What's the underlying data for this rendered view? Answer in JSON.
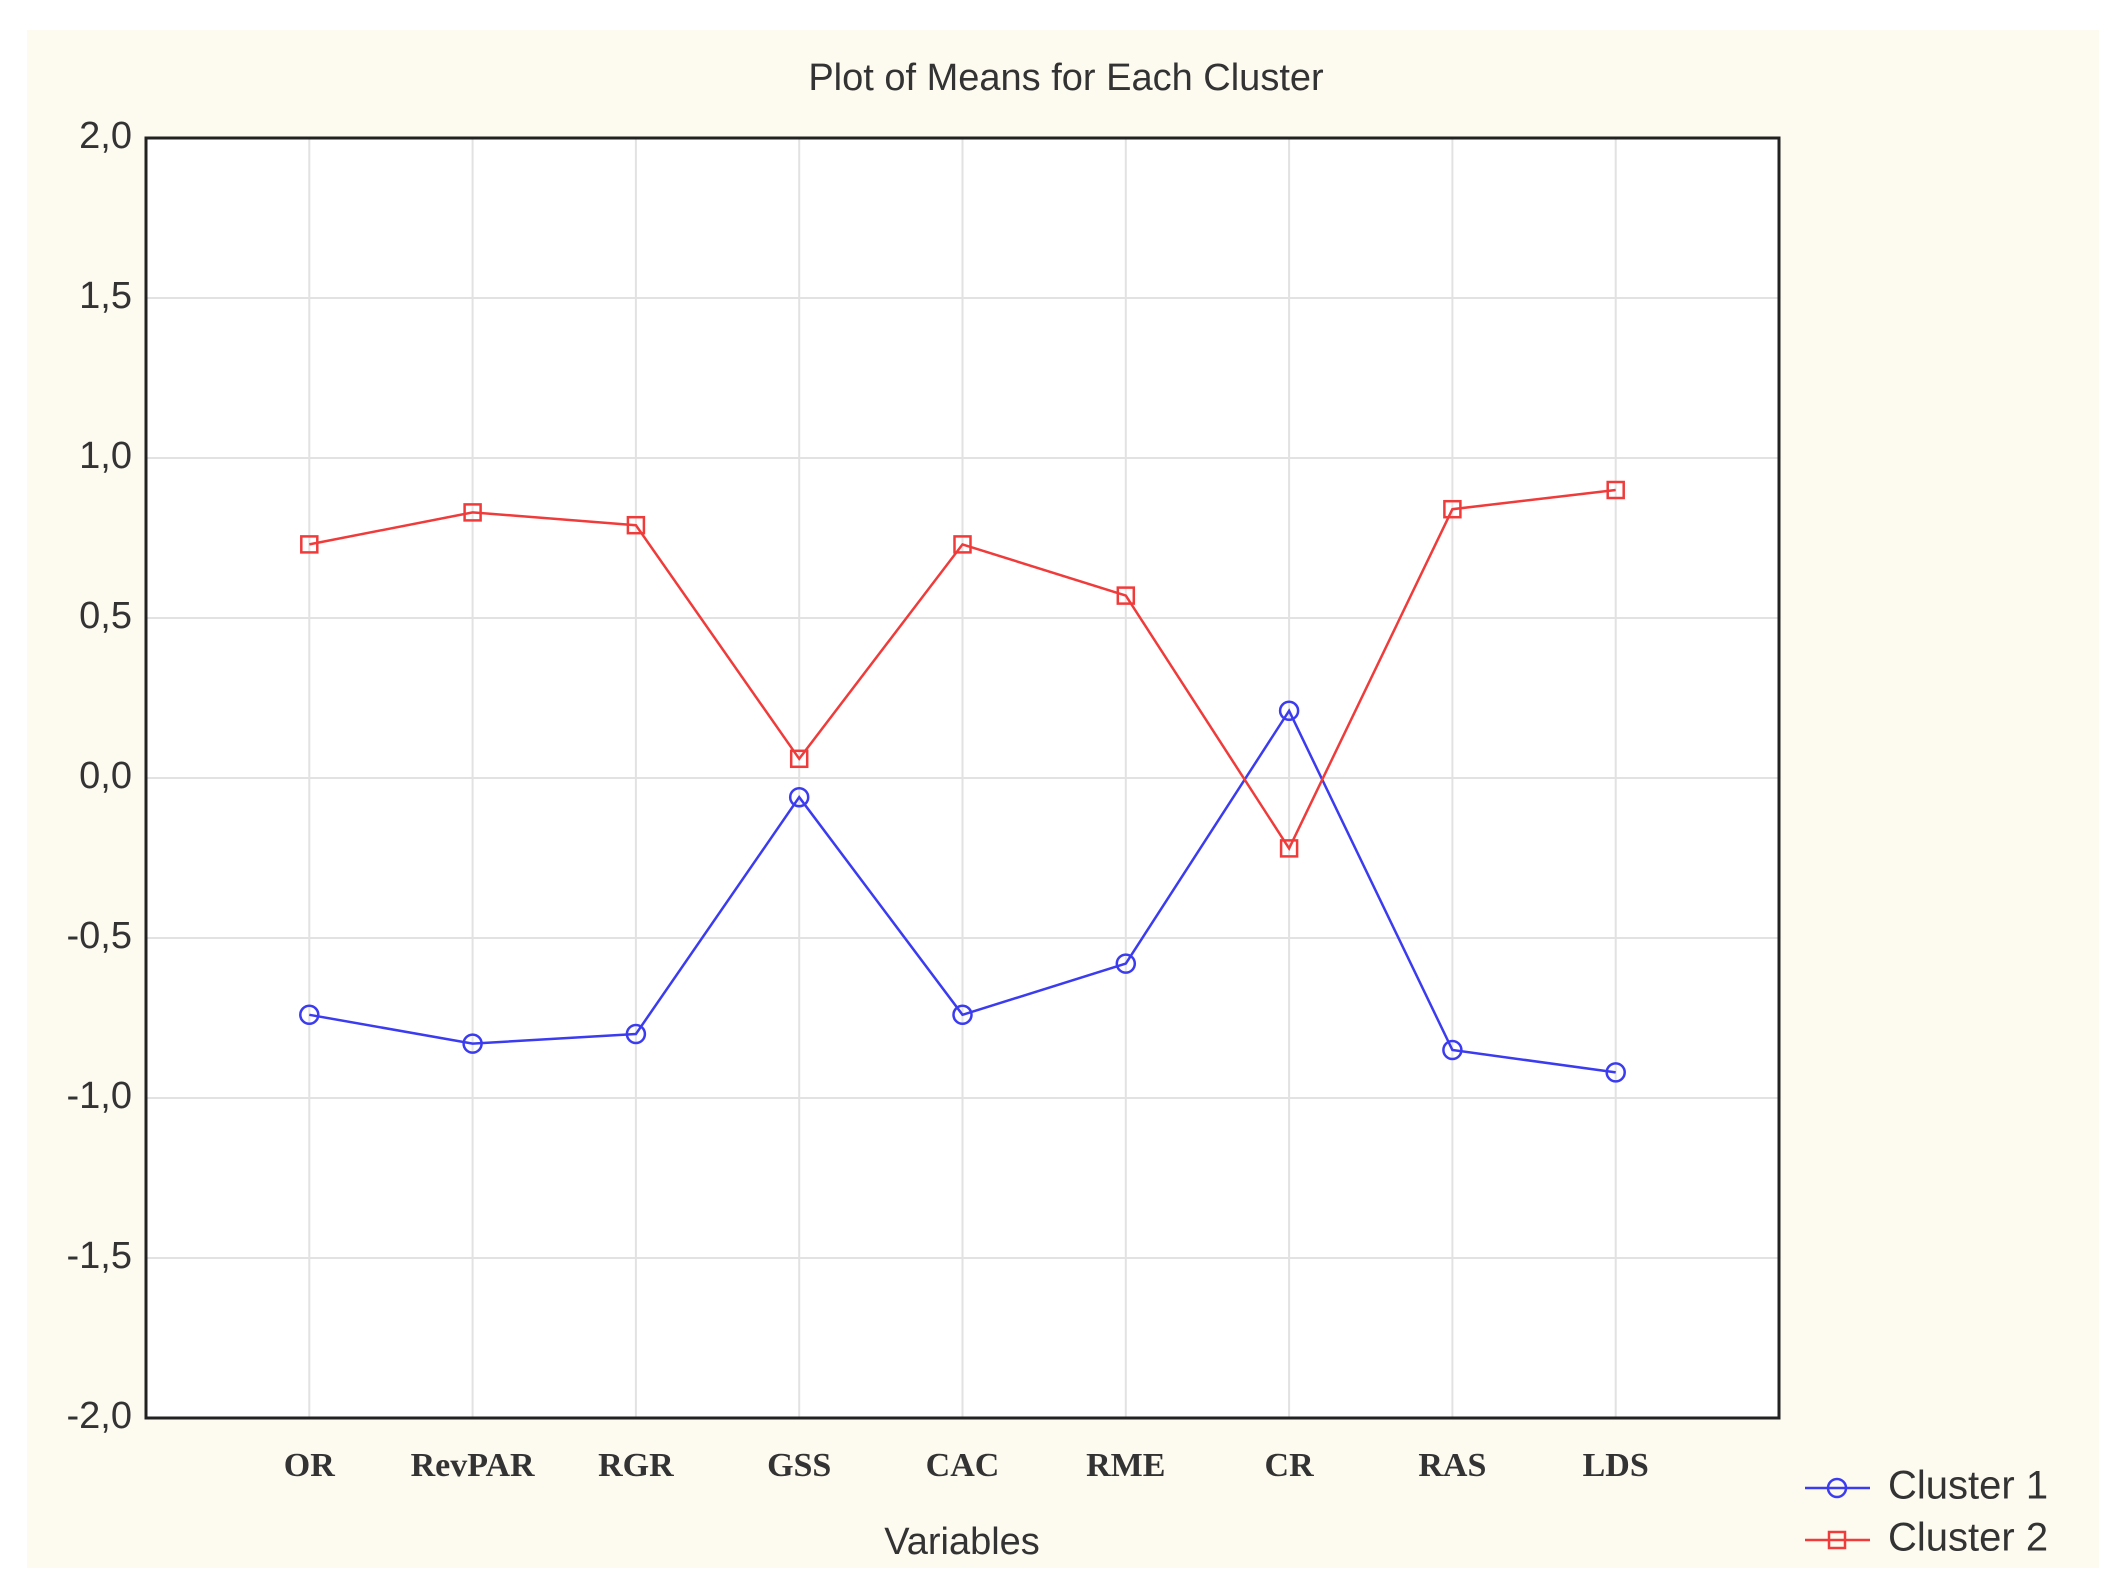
{
  "chart_data": {
    "type": "line",
    "title": "Plot of Means for Each Cluster",
    "x_label": "Variables",
    "categories": [
      "OR",
      "RevPAR",
      "RGR",
      "GSS",
      "CAC",
      "RME",
      "CR",
      "RAS",
      "LDS"
    ],
    "series": [
      {
        "name": "Cluster  1",
        "color": "#3b3bf0",
        "marker": "circle",
        "values": [
          -0.74,
          -0.83,
          -0.8,
          -0.06,
          -0.74,
          -0.58,
          0.21,
          -0.85,
          -0.92
        ]
      },
      {
        "name": "Cluster  2",
        "color": "#f03b3b",
        "marker": "square",
        "values": [
          0.73,
          0.83,
          0.79,
          0.06,
          0.73,
          0.57,
          -0.22,
          0.84,
          0.9
        ]
      }
    ],
    "ylim": [
      -2,
      2
    ],
    "yticks": [
      {
        "value": -2,
        "label": "-2,0"
      },
      {
        "value": -1.5,
        "label": "-1,5"
      },
      {
        "value": -1,
        "label": "-1,0"
      },
      {
        "value": -0.5,
        "label": "-0,5"
      },
      {
        "value": 0,
        "label": "0,0"
      },
      {
        "value": 0.5,
        "label": "0,5"
      },
      {
        "value": 1,
        "label": "1,0"
      },
      {
        "value": 1.5,
        "label": "1,5"
      },
      {
        "value": 2,
        "label": "2,0"
      }
    ],
    "grid": true,
    "legend": "bottom-right"
  }
}
